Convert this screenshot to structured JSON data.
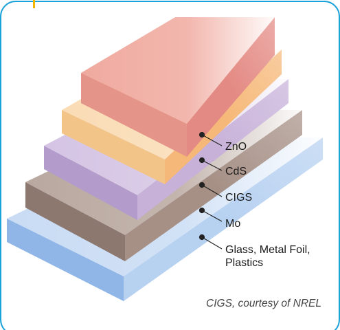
{
  "diagram": {
    "layers": [
      {
        "label": "ZnO",
        "color": "#e8978f"
      },
      {
        "label": "CdS",
        "color": "#f6c48e"
      },
      {
        "label": "CIGS",
        "color": "#c7b1d9"
      },
      {
        "label": "Mo",
        "color": "#a69086"
      },
      {
        "label": "Glass, Metal Foil,",
        "label2": "Plastics",
        "color": "#a9c8ee"
      }
    ],
    "caption": "CIGS, courtesy of NREL",
    "accent_color": "#f2b600",
    "frame_color": "#1aa3d8"
  }
}
